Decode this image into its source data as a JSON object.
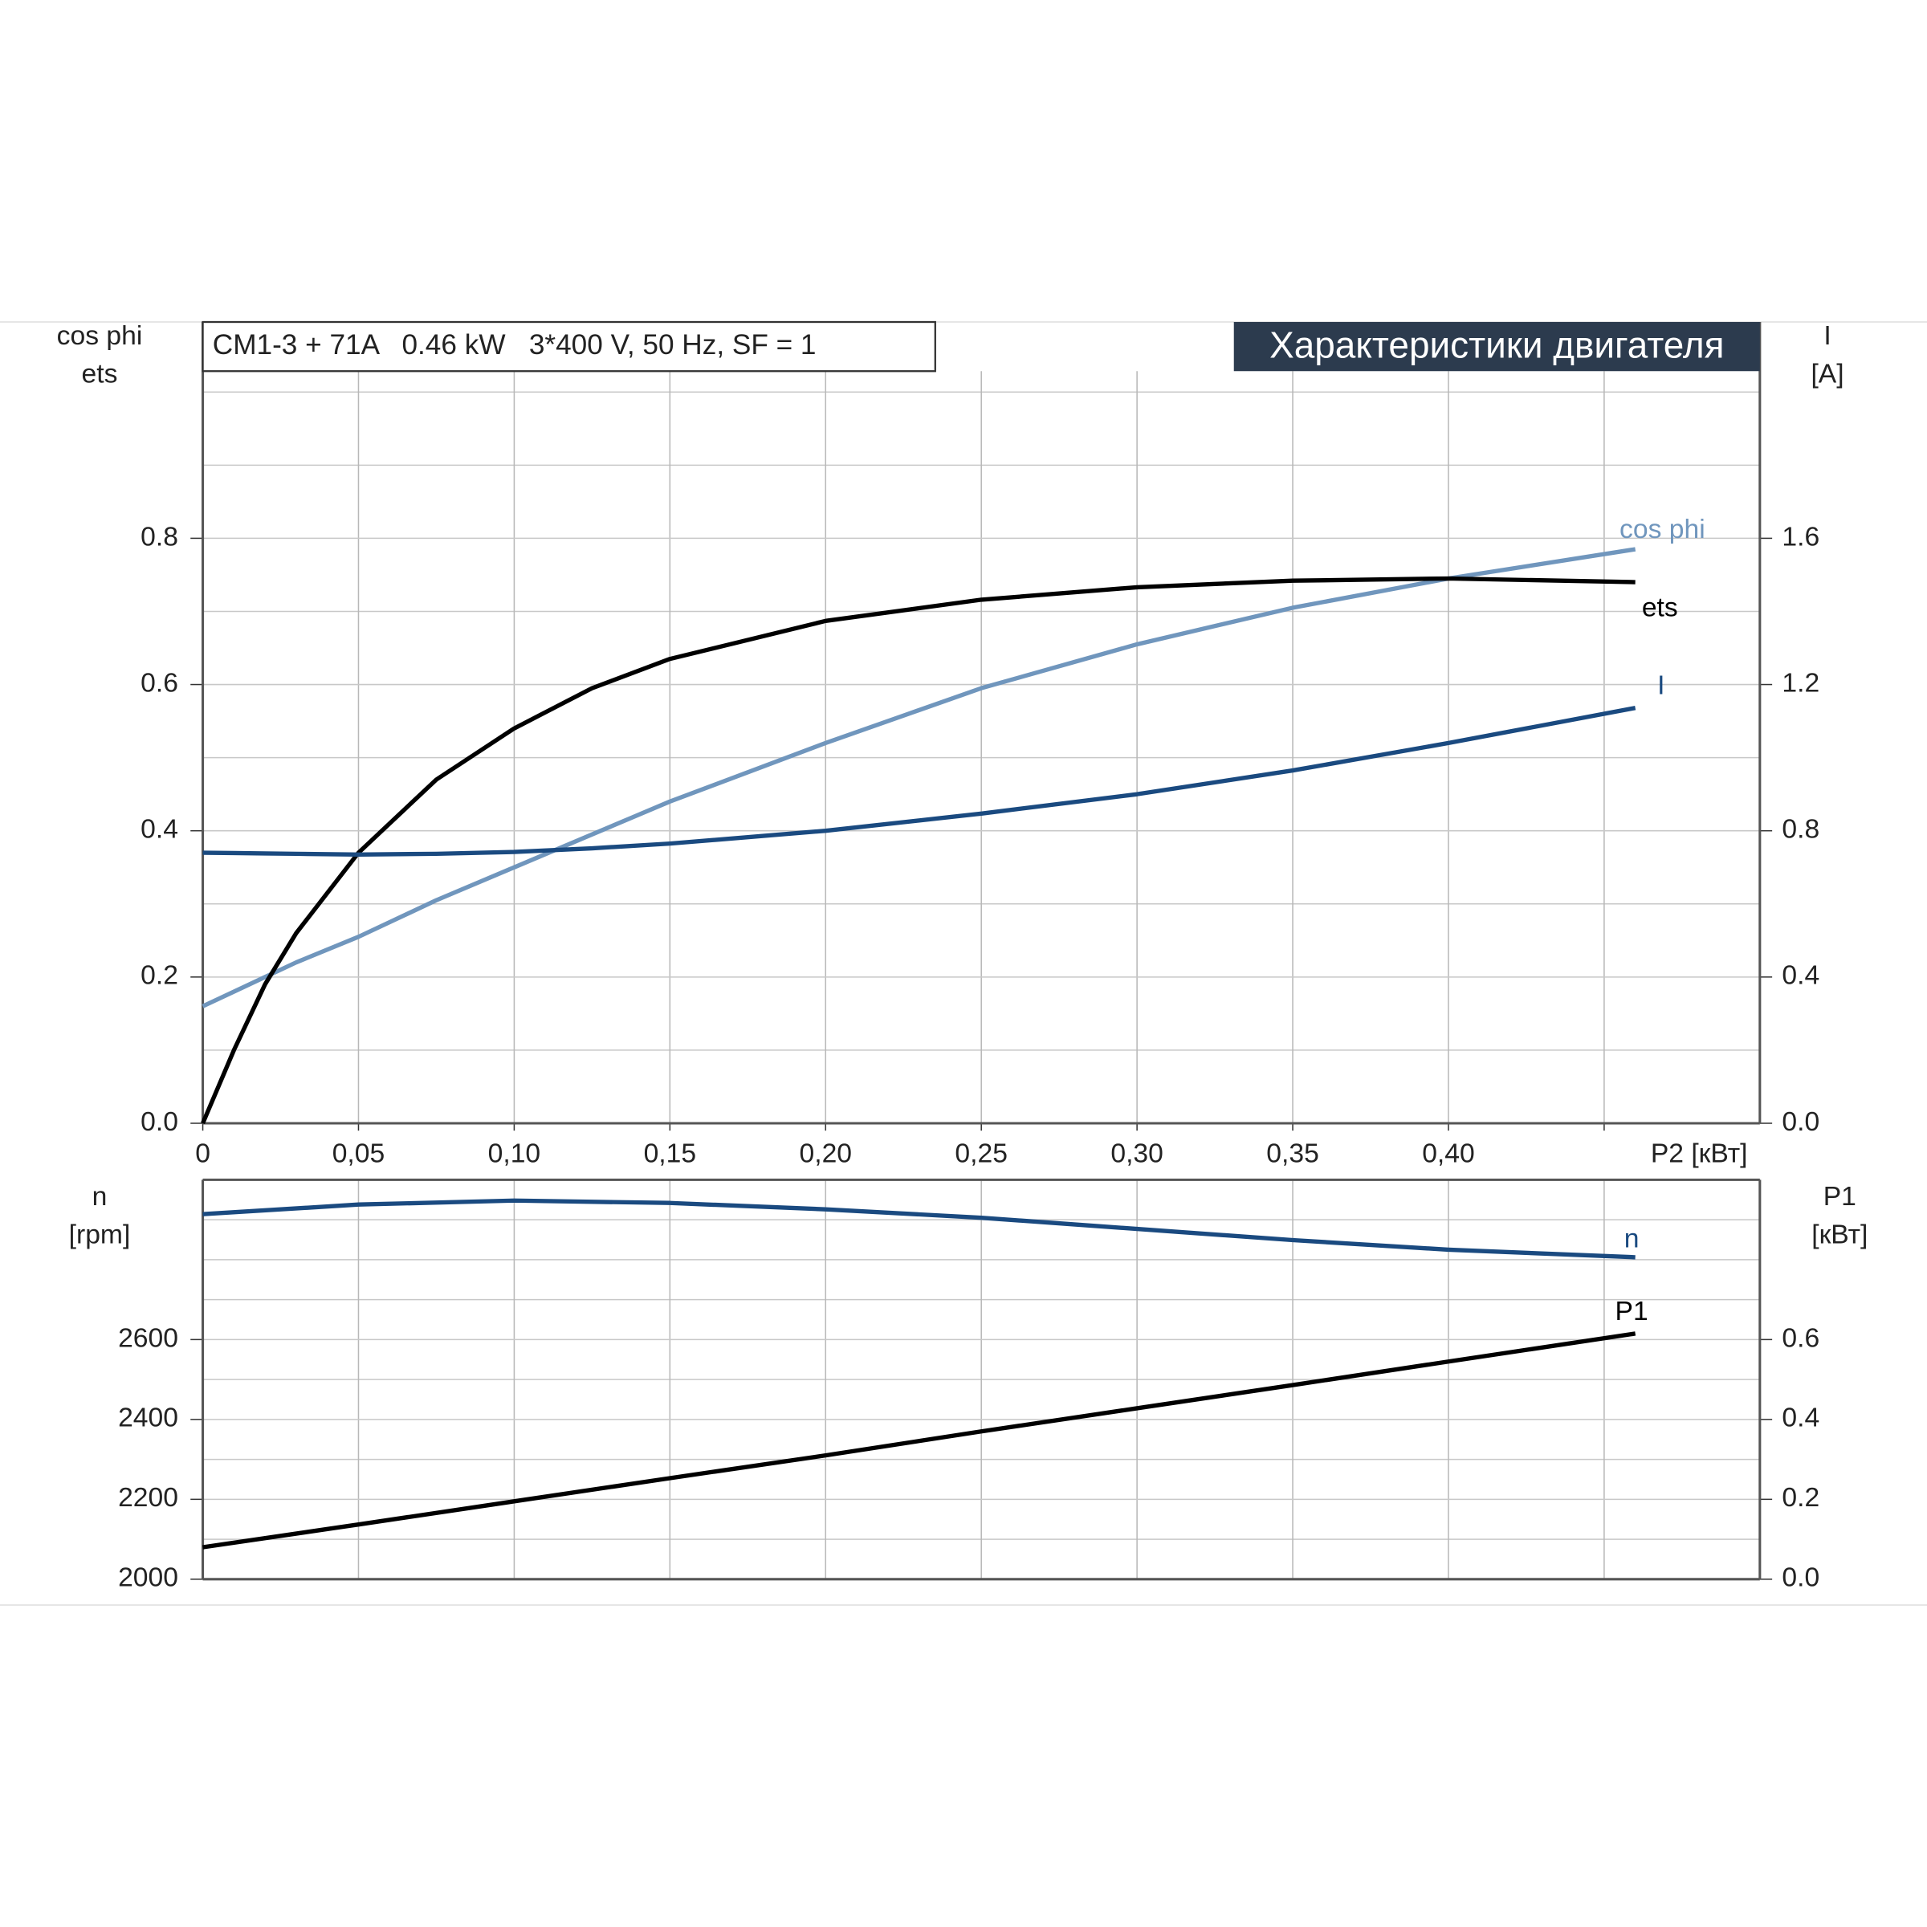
{
  "chart_data": [
    {
      "type": "line",
      "title": "CM1-3 + 71A   0.46 kW   3*400 V, 50 Hz, SF = 1",
      "subtitle": "Характеристики двигателя",
      "ylabel": [
        "cos phi",
        "ets"
      ],
      "y2label": [
        "I",
        "[A]"
      ],
      "x": [
        0,
        0.01,
        0.02,
        0.03,
        0.05,
        0.075,
        0.1,
        0.125,
        0.15,
        0.2,
        0.25,
        0.3,
        0.35,
        0.4,
        0.46
      ],
      "xlim": [
        0,
        0.5
      ],
      "xticks": [
        0,
        {
          "value": 0.05,
          "label": "0,05"
        },
        {
          "value": 0.1,
          "label": "0,10"
        },
        {
          "value": 0.15,
          "label": "0,15"
        },
        {
          "value": 0.2,
          "label": "0,20"
        },
        {
          "value": 0.25,
          "label": "0,25"
        },
        {
          "value": 0.3,
          "label": "0,30"
        },
        {
          "value": 0.35,
          "label": "0,35"
        },
        {
          "value": 0.4,
          "label": "0,40"
        },
        {
          "value": 0.45,
          "label": "P2 [кВт]"
        }
      ],
      "ylim": [
        0,
        1.1
      ],
      "yticks": [
        {
          "value": 0,
          "label": "0.0"
        },
        0.2,
        0.4,
        0.6,
        0.8
      ],
      "yminor": [
        0.1,
        0.3,
        0.5,
        0.7,
        0.9,
        1.0
      ],
      "y2lim": [
        0,
        2.2
      ],
      "y2ticks": [
        {
          "value": 0,
          "label": "0.0"
        },
        0.4,
        0.8,
        1.2,
        1.6
      ],
      "grid": true,
      "series": [
        {
          "name": "cos phi",
          "color": "#7096bd",
          "values": [
            0.16,
            0.18,
            0.2,
            0.22,
            0.255,
            0.305,
            0.35,
            0.395,
            0.44,
            0.52,
            0.595,
            0.655,
            0.705,
            0.745,
            0.785
          ]
        },
        {
          "name": "ets",
          "color": "#000000",
          "values": [
            0,
            0.1,
            0.19,
            0.26,
            0.37,
            0.47,
            0.54,
            0.595,
            0.635,
            0.687,
            0.716,
            0.733,
            0.742,
            0.745,
            0.74
          ]
        },
        {
          "name": "I",
          "color": "#1a4a80",
          "axis": "y2",
          "values": [
            0.74,
            0.739,
            0.738,
            0.737,
            0.735,
            0.737,
            0.742,
            0.752,
            0.765,
            0.8,
            0.847,
            0.9,
            0.965,
            1.04,
            1.136
          ]
        }
      ]
    },
    {
      "type": "line",
      "ylabel": [
        "n",
        "[rpm]"
      ],
      "y2label": [
        "P1",
        "[кВт]"
      ],
      "x": [
        0,
        0.05,
        0.1,
        0.15,
        0.2,
        0.25,
        0.3,
        0.35,
        0.4,
        0.46
      ],
      "xlim": [
        0,
        0.5
      ],
      "ylim": [
        2000,
        3000
      ],
      "yticks": [
        2000,
        2200,
        2400,
        2600
      ],
      "yminor": [
        2100,
        2300,
        2500,
        2700,
        2800,
        2900
      ],
      "y2lim": [
        0,
        1.0
      ],
      "y2ticks": [
        {
          "value": 0,
          "label": "0.0"
        },
        0.2,
        0.4,
        0.6
      ],
      "grid": true,
      "series": [
        {
          "name": "n",
          "color": "#1a4a80",
          "values": [
            2914,
            2938,
            2948,
            2942,
            2926,
            2905,
            2877,
            2849,
            2825,
            2806
          ]
        },
        {
          "name": "P1",
          "color": "#000000",
          "axis": "y2",
          "values": [
            0.08,
            0.137,
            0.195,
            0.253,
            0.31,
            0.37,
            0.428,
            0.486,
            0.545,
            0.615
          ]
        }
      ]
    }
  ]
}
